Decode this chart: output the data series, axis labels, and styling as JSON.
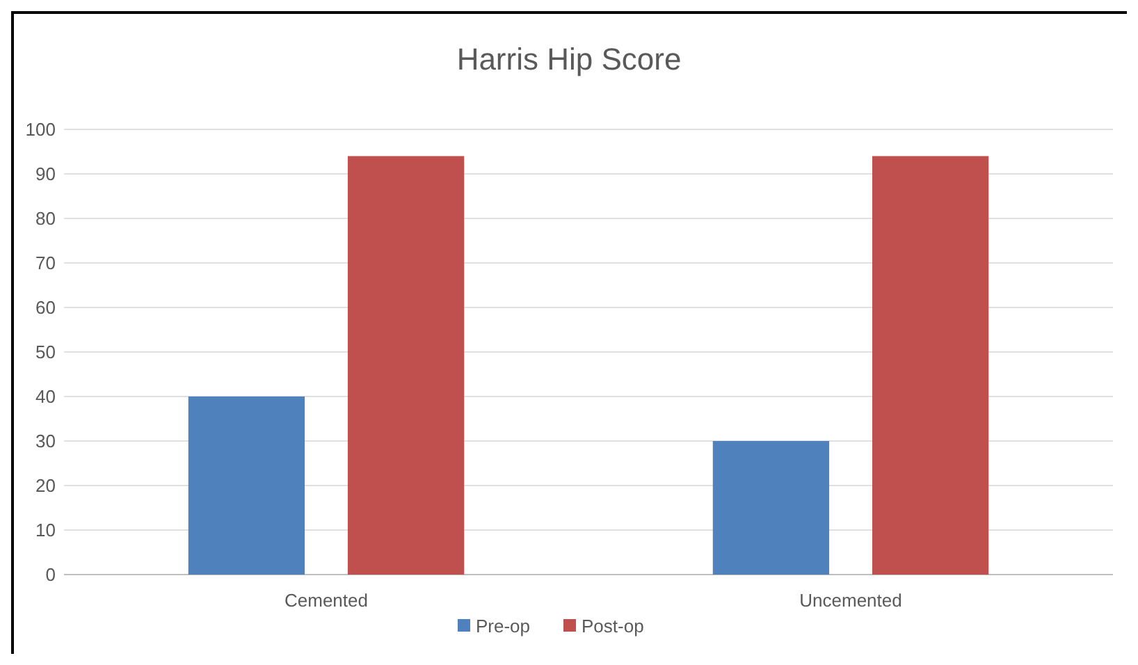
{
  "chart_data": {
    "type": "bar",
    "title": "Harris Hip Score",
    "categories": [
      "Cemented",
      "Uncemented"
    ],
    "series": [
      {
        "name": "Pre-op",
        "color": "#4f81bd",
        "values": [
          40,
          30
        ]
      },
      {
        "name": "Post-op",
        "color": "#c0504d",
        "values": [
          94,
          94
        ]
      }
    ],
    "ylim": [
      0,
      100
    ],
    "yticks": [
      0,
      10,
      20,
      30,
      40,
      50,
      60,
      70,
      80,
      90,
      100
    ],
    "grid": "y",
    "legend": "bottom"
  }
}
